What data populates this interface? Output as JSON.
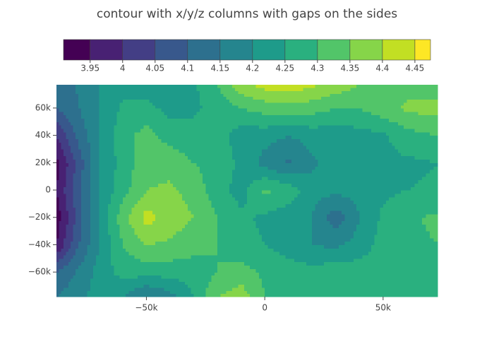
{
  "chart_data": {
    "type": "contour",
    "title": "contour with x/y/z columns with gaps on the sides",
    "x": [
      -88000,
      -80000,
      -70000,
      -60000,
      -50000,
      -40000,
      -30000,
      -20000,
      -10000,
      0,
      10000,
      20000,
      30000,
      40000,
      50000,
      60000,
      73000
    ],
    "y": [
      -78000,
      -60000,
      -40000,
      -20000,
      0,
      20000,
      40000,
      60000,
      77000
    ],
    "z": [
      [
        4.15,
        4.18,
        4.22,
        4.2,
        4.14,
        4.18,
        4.25,
        4.35,
        4.38,
        4.3,
        4.27,
        4.27,
        4.27,
        4.27,
        4.27,
        4.27,
        4.27
      ],
      [
        4.1,
        4.15,
        4.22,
        4.27,
        4.27,
        4.27,
        4.27,
        4.3,
        4.32,
        4.29,
        4.27,
        4.27,
        4.28,
        4.28,
        4.28,
        4.28,
        4.28
      ],
      [
        3.95,
        4.08,
        4.2,
        4.3,
        4.35,
        4.34,
        4.32,
        4.3,
        4.27,
        4.25,
        4.23,
        4.2,
        4.19,
        4.22,
        4.27,
        4.29,
        4.3
      ],
      [
        3.92,
        4.05,
        4.21,
        4.33,
        4.42,
        4.38,
        4.35,
        4.3,
        4.26,
        4.24,
        4.22,
        4.2,
        4.12,
        4.2,
        4.26,
        4.29,
        4.31
      ],
      [
        3.95,
        4.07,
        4.2,
        4.28,
        4.35,
        4.36,
        4.33,
        4.27,
        4.23,
        4.31,
        4.28,
        4.22,
        4.21,
        4.22,
        4.24,
        4.25,
        4.26
      ],
      [
        3.93,
        4.05,
        4.2,
        4.27,
        4.33,
        4.33,
        4.3,
        4.28,
        4.24,
        4.18,
        4.14,
        4.19,
        4.23,
        4.23,
        4.24,
        4.24,
        4.25
      ],
      [
        4.0,
        4.1,
        4.2,
        4.28,
        4.32,
        4.28,
        4.27,
        4.28,
        4.22,
        4.22,
        4.2,
        4.22,
        4.22,
        4.23,
        4.24,
        4.28,
        4.3
      ],
      [
        4.1,
        4.14,
        4.2,
        4.26,
        4.27,
        4.23,
        4.24,
        4.27,
        4.3,
        4.32,
        4.33,
        4.32,
        4.3,
        4.3,
        4.33,
        4.36,
        4.37
      ],
      [
        4.12,
        4.15,
        4.2,
        4.23,
        4.22,
        4.2,
        4.24,
        4.3,
        4.38,
        4.42,
        4.43,
        4.41,
        4.38,
        4.35,
        4.33,
        4.33,
        4.32
      ]
    ],
    "contours": {
      "start": 3.95,
      "end": 4.45,
      "size": 0.05
    },
    "colorscale": [
      "#440154",
      "#482173",
      "#433e85",
      "#38588c",
      "#2d708e",
      "#25858e",
      "#1e9b8a",
      "#2ab07f",
      "#52c569",
      "#86d549",
      "#c2df23",
      "#fde725"
    ],
    "zlim": [
      3.909,
      4.474
    ],
    "colorbar_ticks": [
      3.95,
      4,
      4.05,
      4.1,
      4.15,
      4.2,
      4.25,
      4.3,
      4.35,
      4.4,
      4.45
    ],
    "xlim": [
      -88000,
      73000
    ],
    "ylim": [
      -78000,
      77000
    ],
    "xticks": [
      {
        "value": -50000,
        "label": "−50k"
      },
      0,
      {
        "value": 50000,
        "label": "50k"
      }
    ],
    "yticks": [
      {
        "value": -60000,
        "label": "−60k"
      },
      {
        "value": -40000,
        "label": "−40k"
      },
      {
        "value": -20000,
        "label": "−20k"
      },
      0,
      {
        "value": 20000,
        "label": "20k"
      },
      {
        "value": 40000,
        "label": "40k"
      },
      {
        "value": 60000,
        "label": "60k"
      }
    ]
  }
}
